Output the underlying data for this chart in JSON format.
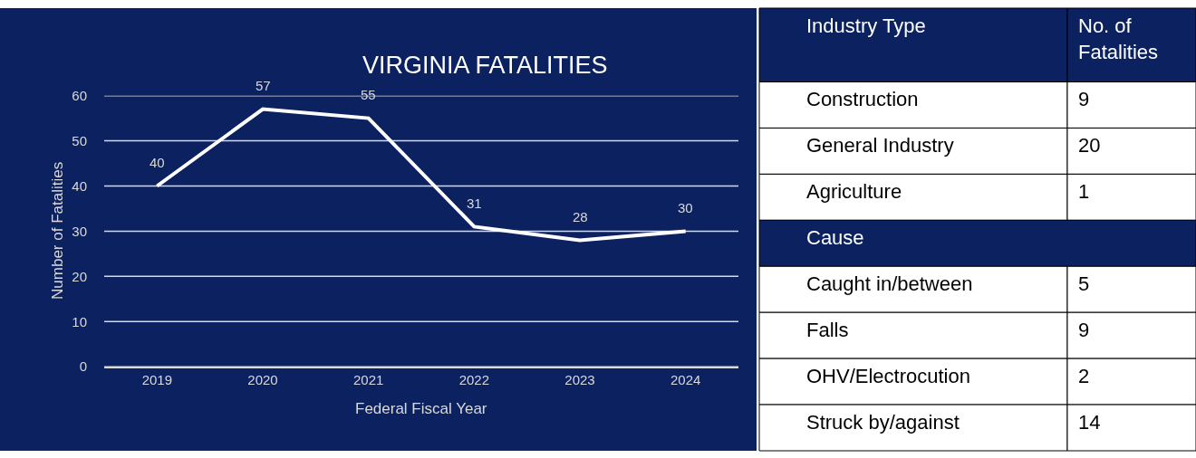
{
  "chart_data": [
    {
      "type": "line",
      "title": "VIRGINIA FATALITIES",
      "xlabel": "Federal Fiscal Year",
      "ylabel": "Number of Fatalities",
      "categories": [
        "2019",
        "2020",
        "2021",
        "2022",
        "2023",
        "2024"
      ],
      "series": [
        {
          "color": "#ffffff",
          "values": [
            40,
            57,
            55,
            31,
            28,
            30
          ]
        }
      ],
      "ylim": [
        0,
        60
      ],
      "yticks": [
        0,
        10,
        20,
        30,
        40,
        50,
        60
      ],
      "grid": "y",
      "data_labels": true,
      "marker": "none",
      "line_style": "solid",
      "legend": false
    },
    {
      "type": "other",
      "categories": [
        "Industry Type",
        "Construction",
        "General Industry",
        "Agriculture",
        "Cause",
        "Caught in/between",
        "Falls",
        "OHV/Electrocution",
        "Struck by/against"
      ],
      "value_labels": [
        "No. of Fatalities",
        "9",
        "20",
        "1",
        null,
        "5",
        "9",
        "2",
        "14"
      ],
      "colors": [
        "#0b2160",
        "#ffffff",
        "#ffffff",
        "#ffffff",
        "#0b2160",
        "#ffffff",
        "#ffffff",
        "#ffffff",
        "#ffffff"
      ]
    }
  ]
}
